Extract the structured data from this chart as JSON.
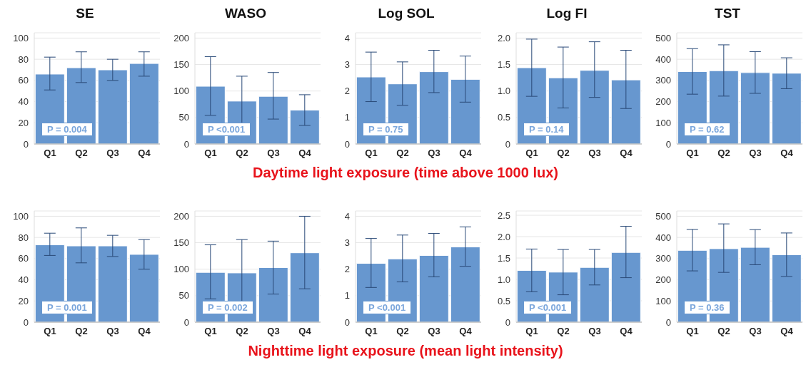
{
  "chart_data": [
    {
      "type": "bar",
      "title": "SE",
      "categories": [
        "Q1",
        "Q2",
        "Q3",
        "Q4"
      ],
      "values": [
        66,
        72,
        70,
        76
      ],
      "errors": [
        [
          51,
          82
        ],
        [
          58,
          87
        ],
        [
          60,
          80
        ],
        [
          64,
          87
        ]
      ],
      "color": "#6797cf",
      "ylim": [
        0,
        105
      ],
      "yticks": [
        0,
        20,
        40,
        60,
        80,
        100
      ],
      "grid": "y",
      "annotations": [
        "P = 0.004",
        "Daytime light exposure (time above 1000 lux)"
      ]
    },
    {
      "type": "bar",
      "title": "WASO",
      "categories": [
        "Q1",
        "Q2",
        "Q3",
        "Q4"
      ],
      "values": [
        109,
        81,
        90,
        64
      ],
      "errors": [
        [
          54,
          165
        ],
        [
          36,
          128
        ],
        [
          47,
          135
        ],
        [
          35,
          93
        ]
      ],
      "color": "#6797cf",
      "ylim": [
        0,
        210
      ],
      "yticks": [
        0,
        50,
        100,
        150,
        200
      ],
      "grid": "y",
      "annotations": [
        "P <0.001"
      ]
    },
    {
      "type": "bar",
      "title": "Log SOL",
      "categories": [
        "Q1",
        "Q2",
        "Q3",
        "Q4"
      ],
      "values": [
        2.53,
        2.27,
        2.73,
        2.44
      ],
      "errors": [
        [
          1.6,
          3.47
        ],
        [
          1.46,
          3.1
        ],
        [
          1.94,
          3.54
        ],
        [
          1.58,
          3.32
        ]
      ],
      "color": "#6797cf",
      "ylim": [
        0,
        4.2
      ],
      "yticks": [
        0,
        1,
        2,
        3,
        4
      ],
      "grid": "y",
      "annotations": [
        "P = 0.75"
      ]
    },
    {
      "type": "bar",
      "title": "Log FI",
      "categories": [
        "Q1",
        "Q2",
        "Q3",
        "Q4"
      ],
      "values": [
        1.44,
        1.25,
        1.39,
        1.21
      ],
      "errors": [
        [
          0.9,
          1.98
        ],
        [
          0.68,
          1.83
        ],
        [
          0.88,
          1.93
        ],
        [
          0.67,
          1.77
        ]
      ],
      "color": "#6797cf",
      "ylim": [
        0,
        2.1
      ],
      "yticks": [
        0,
        {
          "value": 0.5,
          "label": "0.5"
        },
        {
          "value": 1,
          "label": "1.0"
        },
        {
          "value": 1.5,
          "label": "1.5"
        },
        {
          "value": 2,
          "label": "2.0"
        }
      ],
      "grid": "y",
      "annotations": [
        "P = 0.14"
      ]
    },
    {
      "type": "bar",
      "title": "TST",
      "categories": [
        "Q1",
        "Q2",
        "Q3",
        "Q4"
      ],
      "values": [
        342,
        346,
        337,
        334
      ],
      "errors": [
        [
          235,
          450
        ],
        [
          226,
          468
        ],
        [
          239,
          436
        ],
        [
          261,
          407
        ]
      ],
      "color": "#6797cf",
      "ylim": [
        0,
        525
      ],
      "yticks": [
        0,
        100,
        200,
        300,
        400,
        500
      ],
      "grid": "y",
      "annotations": [
        "P = 0.62"
      ]
    },
    {
      "type": "bar",
      "categories": [
        "Q1",
        "Q2",
        "Q3",
        "Q4"
      ],
      "values": [
        73,
        72,
        72,
        64
      ],
      "errors": [
        [
          63,
          84
        ],
        [
          56,
          89
        ],
        [
          62,
          82
        ],
        [
          50,
          78
        ]
      ],
      "color": "#6797cf",
      "ylim": [
        0,
        105
      ],
      "yticks": [
        0,
        20,
        40,
        60,
        80,
        100
      ],
      "grid": "y",
      "annotations": [
        "P = 0.001",
        "Nighttime light exposure (mean light intensity)"
      ]
    },
    {
      "type": "bar",
      "categories": [
        "Q1",
        "Q2",
        "Q3",
        "Q4"
      ],
      "values": [
        94,
        93,
        103,
        131
      ],
      "errors": [
        [
          44,
          146
        ],
        [
          30,
          156
        ],
        [
          53,
          153
        ],
        [
          63,
          200
        ]
      ],
      "color": "#6797cf",
      "ylim": [
        0,
        210
      ],
      "yticks": [
        0,
        50,
        100,
        150,
        200
      ],
      "grid": "y",
      "annotations": [
        "P = 0.002"
      ]
    },
    {
      "type": "bar",
      "categories": [
        "Q1",
        "Q2",
        "Q3",
        "Q4"
      ],
      "values": [
        2.22,
        2.39,
        2.52,
        2.84
      ],
      "errors": [
        [
          1.31,
          3.16
        ],
        [
          1.52,
          3.29
        ],
        [
          1.71,
          3.35
        ],
        [
          2.11,
          3.6
        ]
      ],
      "color": "#6797cf",
      "ylim": [
        0,
        4.2
      ],
      "yticks": [
        0,
        1,
        2,
        3,
        4
      ],
      "grid": "y",
      "annotations": [
        "P <0.001"
      ]
    },
    {
      "type": "bar",
      "categories": [
        "Q1",
        "Q2",
        "Q3",
        "Q4"
      ],
      "values": [
        1.21,
        1.17,
        1.28,
        1.63
      ],
      "errors": [
        [
          0.71,
          1.71
        ],
        [
          0.64,
          1.7
        ],
        [
          0.87,
          1.7
        ],
        [
          1.04,
          2.24
        ]
      ],
      "color": "#6797cf",
      "ylim": [
        0,
        2.6
      ],
      "yticks": [
        0,
        {
          "value": 0.5,
          "label": "0.5"
        },
        {
          "value": 1,
          "label": "1.0"
        },
        {
          "value": 1.5,
          "label": "1.5"
        },
        {
          "value": 2,
          "label": "2.0"
        },
        2.5
      ],
      "grid": "y",
      "annotations": [
        "P <0.001"
      ]
    },
    {
      "type": "bar",
      "categories": [
        "Q1",
        "Q2",
        "Q3",
        "Q4"
      ],
      "values": [
        339,
        347,
        353,
        318
      ],
      "errors": [
        [
          242,
          438
        ],
        [
          235,
          464
        ],
        [
          271,
          437
        ],
        [
          216,
          421
        ]
      ],
      "color": "#6797cf",
      "ylim": [
        0,
        525
      ],
      "yticks": [
        0,
        100,
        200,
        300,
        400,
        500
      ],
      "grid": "y",
      "annotations": [
        "P = 0.36"
      ]
    }
  ]
}
